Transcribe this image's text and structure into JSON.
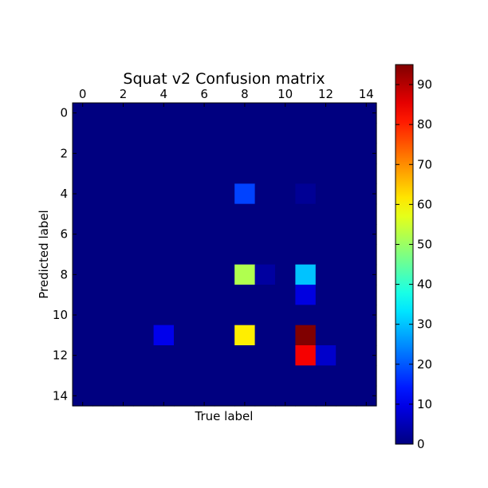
{
  "chart_data": {
    "type": "heatmap",
    "title": "Squat v2 Confusion matrix",
    "xlabel": "True label",
    "ylabel": "Predicted label",
    "x_ticks": [
      "0",
      "2",
      "4",
      "6",
      "8",
      "10",
      "12",
      "14"
    ],
    "y_ticks": [
      "0",
      "2",
      "4",
      "6",
      "8",
      "10",
      "12",
      "14"
    ],
    "n_rows": 15,
    "n_cols": 15,
    "colormap": "jet",
    "vmin": 0,
    "vmax": 95,
    "colorbar_ticks": [
      "0",
      "10",
      "20",
      "30",
      "40",
      "50",
      "60",
      "70",
      "80",
      "90"
    ],
    "cells": [
      {
        "row": 4,
        "col": 8,
        "value": 18
      },
      {
        "row": 4,
        "col": 11,
        "value": 2
      },
      {
        "row": 8,
        "col": 8,
        "value": 52
      },
      {
        "row": 8,
        "col": 9,
        "value": 3
      },
      {
        "row": 8,
        "col": 11,
        "value": 30
      },
      {
        "row": 9,
        "col": 11,
        "value": 9
      },
      {
        "row": 11,
        "col": 4,
        "value": 10
      },
      {
        "row": 11,
        "col": 8,
        "value": 61
      },
      {
        "row": 11,
        "col": 11,
        "value": 95
      },
      {
        "row": 12,
        "col": 11,
        "value": 84
      },
      {
        "row": 12,
        "col": 12,
        "value": 7
      }
    ]
  }
}
